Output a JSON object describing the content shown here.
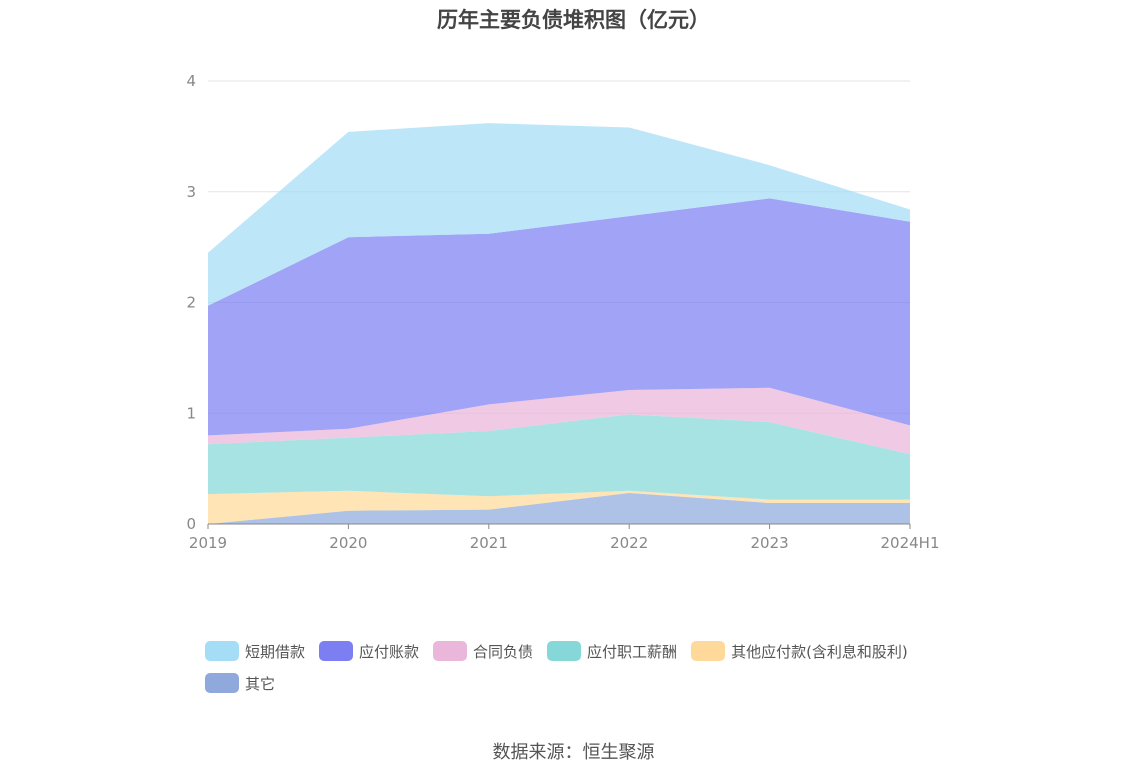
{
  "chart_data": {
    "type": "area",
    "stacked": true,
    "title": "历年主要负债堆积图（亿元）",
    "categories": [
      "2019",
      "2020",
      "2021",
      "2022",
      "2023",
      "2024H1"
    ],
    "y_ticks": [
      "0",
      "1",
      "2",
      "3",
      "4"
    ],
    "ylim": [
      0,
      4
    ],
    "series": [
      {
        "name": "其它",
        "color": "#8fa9dc",
        "values": [
          0.0,
          0.12,
          0.13,
          0.28,
          0.19,
          0.19
        ]
      },
      {
        "name": "其他应付款(含利息和股利)",
        "color": "#ffd99a",
        "values": [
          0.27,
          0.18,
          0.12,
          0.02,
          0.03,
          0.03
        ]
      },
      {
        "name": "应付职工薪酬",
        "color": "#86d8d8",
        "values": [
          0.45,
          0.48,
          0.59,
          0.69,
          0.7,
          0.41
        ]
      },
      {
        "name": "合同负债",
        "color": "#eab6da",
        "values": [
          0.08,
          0.08,
          0.24,
          0.22,
          0.31,
          0.26
        ]
      },
      {
        "name": "应付账款",
        "color": "#7b7ff2",
        "values": [
          1.17,
          1.73,
          1.54,
          1.57,
          1.71,
          1.84
        ]
      },
      {
        "name": "短期借款",
        "color": "#a5ddf6",
        "values": [
          0.48,
          0.95,
          1.0,
          0.8,
          0.3,
          0.11
        ]
      }
    ],
    "legend_order": [
      "短期借款",
      "应付账款",
      "合同负债",
      "应付职工薪酬",
      "其他应付款(含利息和股利)",
      "其它"
    ],
    "legend_position": "bottom",
    "grid": true
  },
  "source_text": "数据来源：恒生聚源"
}
